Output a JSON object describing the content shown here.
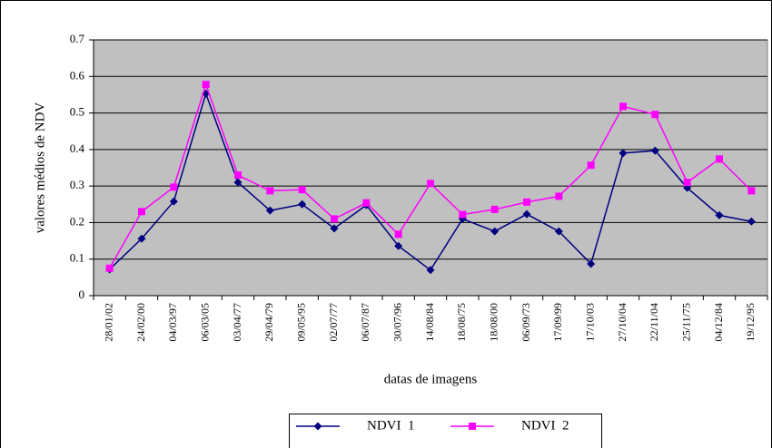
{
  "chart_data": {
    "type": "line",
    "y_label": "valores médios de NDV",
    "x_label": "datas de imagens",
    "categories": [
      "28/01/02",
      "24/02/00",
      "04/03/97",
      "06/03/05",
      "03/04/77",
      "29/04/79",
      "09/05/95",
      "02/07/77",
      "06/07/87",
      "30/07/96",
      "14/08/84",
      "18/08/75",
      "18/08/00",
      "06/09/73",
      "17/09/99",
      "17/10/03",
      "27/10/04",
      "22/11/04",
      "25/11/75",
      "04/12/84",
      "19/12/95"
    ],
    "series": [
      {
        "name": "NDVI  1",
        "color": "#000080",
        "marker": "diamond",
        "values": [
          0.072,
          0.156,
          0.258,
          0.553,
          0.31,
          0.233,
          0.25,
          0.184,
          0.248,
          0.136,
          0.07,
          0.21,
          0.176,
          0.223,
          0.176,
          0.087,
          0.39,
          0.397,
          0.295,
          0.22,
          0.203
        ]
      },
      {
        "name": "NDVI  2",
        "color": "#ff00ff",
        "marker": "square",
        "values": [
          0.075,
          0.23,
          0.297,
          0.578,
          0.33,
          0.287,
          0.29,
          0.21,
          0.254,
          0.168,
          0.307,
          0.222,
          0.236,
          0.256,
          0.272,
          0.357,
          0.518,
          0.496,
          0.31,
          0.374,
          0.287
        ]
      }
    ],
    "ylim": [
      0,
      0.7
    ],
    "yticks": [
      0,
      0.1,
      0.2,
      0.3,
      0.4,
      0.5,
      0.6,
      0.7
    ],
    "grid": true,
    "legend": "bottom"
  }
}
